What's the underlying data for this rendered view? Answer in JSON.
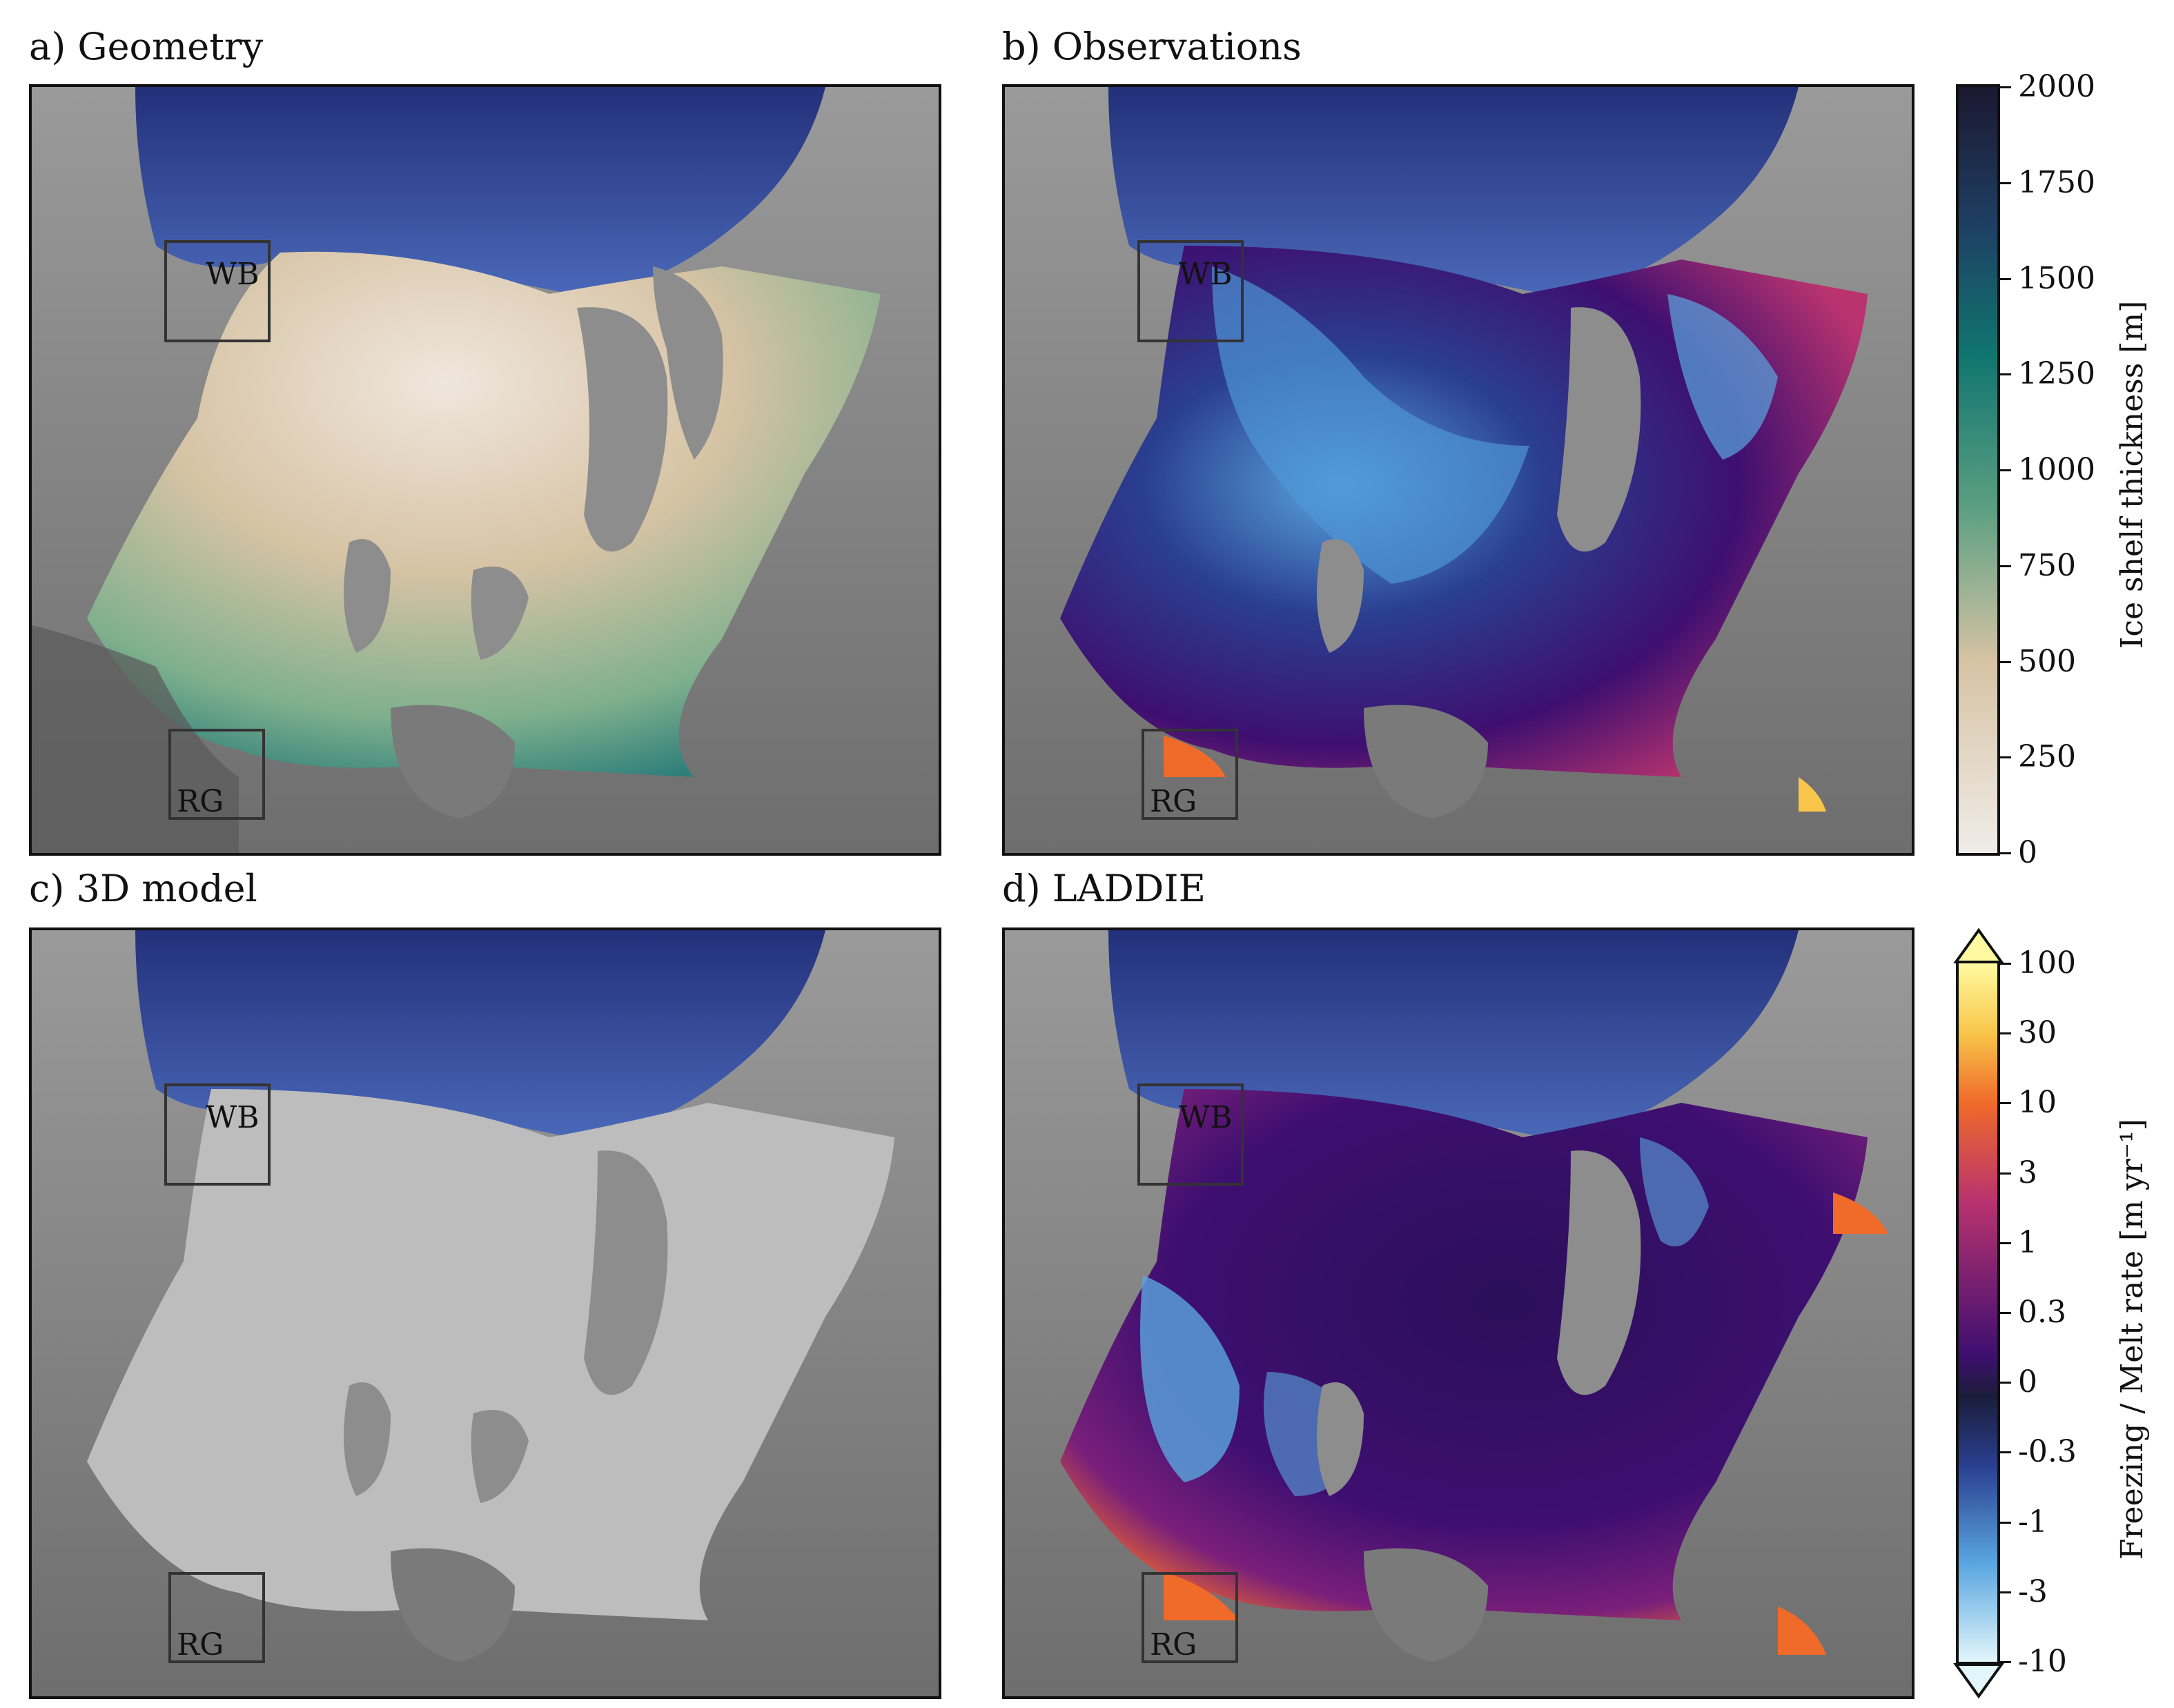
{
  "panels": {
    "a": {
      "title": "a) Geometry",
      "box1": "WB",
      "box2": "RG"
    },
    "b": {
      "title": "b) Observations",
      "box1": "WB",
      "box2": "RG"
    },
    "c": {
      "title": "c) 3D model",
      "box1": "WB",
      "box2": "RG"
    },
    "d": {
      "title": "d) LADDIE",
      "box1": "WB",
      "box2": "RG"
    }
  },
  "colors": {
    "ocean": "#3a4fa0",
    "land_light": "#a9a9a9",
    "land_dark": "#555555",
    "shelf_c": "#bdbdbd",
    "thick_low": "#efe6dc",
    "thick_mid": "#d6c3a4",
    "thick_high": "#5c9f82",
    "melt_purple": "#3e0f70",
    "melt_orange": "#f06a2a",
    "freeze_blue": "#5aa6e0"
  },
  "chart_data": [
    {
      "type": "heatmap",
      "title": "a) Geometry",
      "colorbar_label": "Ice shelf thickness [m]",
      "colorbar_ticks": [
        "2000",
        "1750",
        "1500",
        "1250",
        "1000",
        "750",
        "500",
        "250",
        "0"
      ],
      "range": [
        0,
        2000
      ],
      "annotations": [
        "WB",
        "RG"
      ]
    },
    {
      "type": "heatmap",
      "title": "b) Observations",
      "annotations": [
        "WB",
        "RG"
      ]
    },
    {
      "type": "heatmap",
      "title": "c) 3D model",
      "annotations": [
        "WB",
        "RG"
      ]
    },
    {
      "type": "heatmap",
      "title": "d) LADDIE",
      "colorbar_label": "Freezing / Melt rate [m yr⁻¹]",
      "colorbar_ticks": [
        "100",
        "30",
        "10",
        "3",
        "1",
        "0.3",
        "0",
        "-0.3",
        "-1",
        "-3",
        "-10"
      ],
      "range": [
        -10,
        100
      ],
      "annotations": [
        "WB",
        "RG"
      ]
    }
  ],
  "colorbar_top": {
    "label": "Ice shelf thickness [m]",
    "ticks": [
      "2000",
      "1750",
      "1500",
      "1250",
      "1000",
      "750",
      "500",
      "250",
      "0"
    ]
  },
  "colorbar_bottom": {
    "label": "Freezing / Melt rate [m yr⁻¹]",
    "ticks": [
      "100",
      "30",
      "10",
      "3",
      "1",
      "0.3",
      "0",
      "-0.3",
      "-1",
      "-3",
      "-10"
    ]
  }
}
